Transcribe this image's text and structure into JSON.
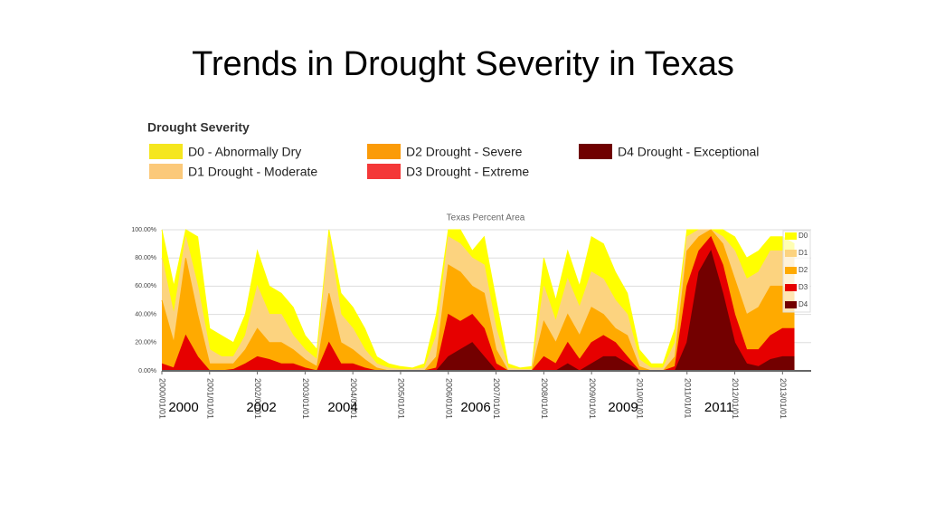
{
  "title": "Trends in Drought Severity in Texas",
  "severity_legend": {
    "title": "Drought Severity",
    "items": [
      {
        "label": "D0 - Abnormally Dry",
        "color": "#f5e61e"
      },
      {
        "label": "D1 Drought - Moderate",
        "color": "#fbc97a"
      },
      {
        "label": "D2 Drought - Severe",
        "color": "#fb9b08"
      },
      {
        "label": "D3 Drought - Extreme",
        "color": "#f43838"
      },
      {
        "label": "D4 Drought - Exceptional",
        "color": "#6f0000"
      }
    ]
  },
  "annotations": [
    "2000",
    "2002",
    "2004",
    "2006",
    "2009",
    "2011"
  ],
  "chart_data": {
    "type": "area",
    "title": "Texas Percent Area",
    "x": [
      2000,
      2000.25,
      2000.5,
      2000.75,
      2001,
      2001.25,
      2001.5,
      2001.75,
      2002,
      2002.25,
      2002.5,
      2002.75,
      2003,
      2003.25,
      2003.5,
      2003.75,
      2004,
      2004.25,
      2004.5,
      2004.75,
      2005,
      2005.25,
      2005.5,
      2005.75,
      2006,
      2006.25,
      2006.5,
      2006.75,
      2007,
      2007.25,
      2007.5,
      2007.75,
      2008,
      2008.25,
      2008.5,
      2008.75,
      2009,
      2009.25,
      2009.5,
      2009.75,
      2010,
      2010.25,
      2010.5,
      2010.75,
      2011,
      2011.25,
      2011.5,
      2011.75,
      2012,
      2012.25,
      2012.5,
      2012.75,
      2013,
      2013.25
    ],
    "series": [
      {
        "name": "D0",
        "color": "#ffff00",
        "values": [
          100,
          60,
          100,
          95,
          30,
          25,
          20,
          40,
          85,
          60,
          55,
          45,
          25,
          15,
          100,
          55,
          45,
          30,
          10,
          5,
          3,
          2,
          5,
          40,
          100,
          100,
          85,
          95,
          50,
          5,
          2,
          3,
          80,
          50,
          85,
          60,
          95,
          90,
          70,
          55,
          15,
          5,
          5,
          30,
          100,
          100,
          100,
          100,
          95,
          80,
          85,
          95,
          95,
          90
        ]
      },
      {
        "name": "D1",
        "color": "#fcd37f",
        "values": [
          80,
          40,
          95,
          60,
          15,
          10,
          10,
          25,
          60,
          40,
          40,
          25,
          15,
          8,
          95,
          40,
          30,
          15,
          5,
          2,
          1,
          1,
          2,
          25,
          95,
          90,
          80,
          75,
          30,
          2,
          1,
          1,
          60,
          35,
          65,
          45,
          70,
          65,
          50,
          40,
          8,
          2,
          2,
          20,
          95,
          100,
          100,
          95,
          85,
          65,
          70,
          85,
          85,
          80
        ]
      },
      {
        "name": "D2",
        "color": "#ffaa00",
        "values": [
          50,
          20,
          80,
          40,
          5,
          5,
          5,
          15,
          30,
          20,
          20,
          15,
          8,
          3,
          55,
          20,
          15,
          8,
          2,
          0,
          0,
          0,
          0,
          10,
          75,
          70,
          60,
          55,
          15,
          0,
          0,
          0,
          35,
          20,
          40,
          25,
          45,
          40,
          30,
          25,
          3,
          0,
          0,
          10,
          85,
          95,
          100,
          90,
          65,
          40,
          45,
          60,
          60,
          55
        ]
      },
      {
        "name": "D3",
        "color": "#e60000",
        "values": [
          5,
          2,
          25,
          10,
          0,
          0,
          1,
          5,
          10,
          8,
          5,
          5,
          2,
          0,
          20,
          5,
          5,
          2,
          0,
          0,
          0,
          0,
          0,
          2,
          40,
          35,
          40,
          30,
          5,
          0,
          0,
          0,
          10,
          5,
          20,
          8,
          20,
          25,
          20,
          10,
          0,
          0,
          0,
          3,
          60,
          85,
          95,
          75,
          40,
          15,
          15,
          25,
          30,
          30
        ]
      },
      {
        "name": "D4",
        "color": "#730000",
        "values": [
          0,
          0,
          0,
          0,
          0,
          0,
          0,
          0,
          0,
          0,
          0,
          0,
          0,
          0,
          0,
          0,
          0,
          0,
          0,
          0,
          0,
          0,
          0,
          0,
          10,
          15,
          20,
          10,
          0,
          0,
          0,
          0,
          0,
          0,
          5,
          0,
          5,
          10,
          10,
          5,
          0,
          0,
          0,
          0,
          20,
          70,
          85,
          55,
          20,
          5,
          3,
          8,
          10,
          10
        ]
      }
    ],
    "xlim": [
      2000,
      2013.6
    ],
    "xticks": [
      {
        "value": 2000,
        "label": "2000/01/01"
      },
      {
        "value": 2001,
        "label": "2001/01/01"
      },
      {
        "value": 2002,
        "label": "2002/01/01"
      },
      {
        "value": 2003,
        "label": "2003/01/01"
      },
      {
        "value": 2004,
        "label": "2004/01/01"
      },
      {
        "value": 2005,
        "label": "2005/01/01"
      },
      {
        "value": 2006,
        "label": "2006/01/01"
      },
      {
        "value": 2007,
        "label": "2007/01/01"
      },
      {
        "value": 2008,
        "label": "2008/01/01"
      },
      {
        "value": 2009,
        "label": "2009/01/01"
      },
      {
        "value": 2010,
        "label": "2010/01/01"
      },
      {
        "value": 2011,
        "label": "2011/01/01"
      },
      {
        "value": 2012,
        "label": "2012/01/01"
      },
      {
        "value": 2013,
        "label": "2013/01/01"
      }
    ],
    "ylim": [
      0,
      100
    ],
    "yticks": [
      {
        "value": 0,
        "label": "0.00%"
      },
      {
        "value": 20,
        "label": "20.00%"
      },
      {
        "value": 40,
        "label": "40.00%"
      },
      {
        "value": 60,
        "label": "60.00%"
      },
      {
        "value": 80,
        "label": "80.00%"
      },
      {
        "value": 100,
        "label": "100.00%"
      }
    ],
    "grid": true
  }
}
